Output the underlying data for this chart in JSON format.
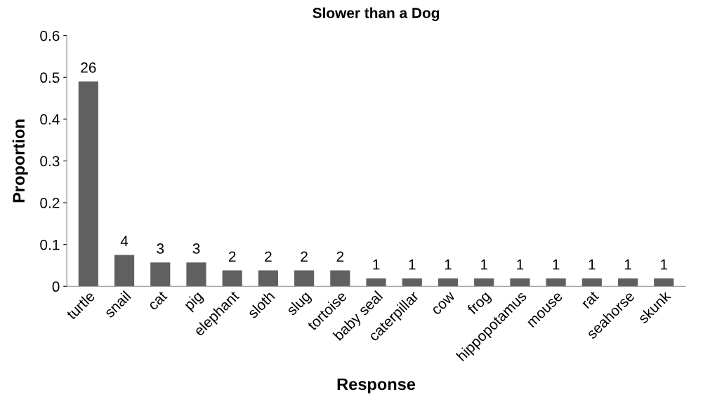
{
  "chart_data": {
    "type": "bar",
    "title": "Slower than a Dog",
    "xlabel": "Response",
    "ylabel": "Proportion",
    "categories": [
      "turtle",
      "snail",
      "cat",
      "pig",
      "elephant",
      "sloth",
      "slug",
      "tortoise",
      "baby seal",
      "caterpillar",
      "cow",
      "frog",
      "hippopotamus",
      "mouse",
      "rat",
      "seahorse",
      "skunk"
    ],
    "values": [
      0.49,
      0.075,
      0.057,
      0.057,
      0.038,
      0.038,
      0.038,
      0.038,
      0.019,
      0.019,
      0.019,
      0.019,
      0.019,
      0.019,
      0.019,
      0.019,
      0.019
    ],
    "annotations": [
      {
        "text": "26",
        "x": "turtle",
        "y": 0.49
      },
      {
        "text": "4",
        "x": "snail",
        "y": 0.075
      },
      {
        "text": "3",
        "x": "cat",
        "y": 0.057
      },
      {
        "text": "3",
        "x": "pig",
        "y": 0.057
      },
      {
        "text": "2",
        "x": "elephant",
        "y": 0.038
      },
      {
        "text": "2",
        "x": "sloth",
        "y": 0.038
      },
      {
        "text": "2",
        "x": "slug",
        "y": 0.038
      },
      {
        "text": "2",
        "x": "tortoise",
        "y": 0.038
      },
      {
        "text": "1",
        "x": "baby seal",
        "y": 0.019
      },
      {
        "text": "1",
        "x": "caterpillar",
        "y": 0.019
      },
      {
        "text": "1",
        "x": "cow",
        "y": 0.019
      },
      {
        "text": "1",
        "x": "frog",
        "y": 0.019
      },
      {
        "text": "1",
        "x": "hippopotamus",
        "y": 0.019
      },
      {
        "text": "1",
        "x": "mouse",
        "y": 0.019
      },
      {
        "text": "1",
        "x": "rat",
        "y": 0.019
      },
      {
        "text": "1",
        "x": "seahorse",
        "y": 0.019
      },
      {
        "text": "1",
        "x": "skunk",
        "y": 0.019
      }
    ],
    "color": "#606060",
    "ylim": [
      0,
      0.6
    ],
    "yticks": [
      0,
      0.1,
      0.2,
      0.3,
      0.4,
      0.5,
      0.6
    ],
    "grid": false,
    "legend": false
  }
}
